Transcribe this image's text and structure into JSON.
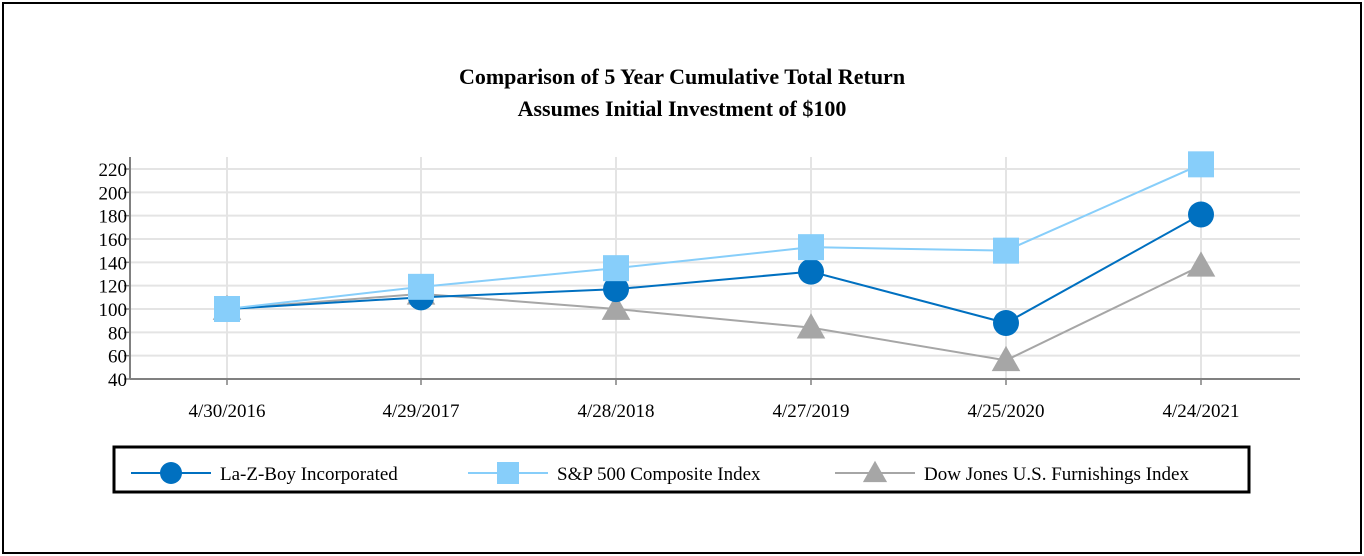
{
  "chart_data": {
    "type": "line",
    "title": "Comparison of 5 Year Cumulative Total Return",
    "subtitle": "Assumes Initial Investment of $100",
    "categories": [
      "4/30/2016",
      "4/29/2017",
      "4/28/2018",
      "4/27/2019",
      "4/25/2020",
      "4/24/2021"
    ],
    "ylim": [
      40,
      220
    ],
    "yticks": [
      40,
      60,
      80,
      100,
      120,
      140,
      160,
      180,
      200,
      220
    ],
    "grid": true,
    "legend_position": "bottom",
    "series": [
      {
        "name": "La-Z-Boy Incorporated",
        "marker": "circle",
        "color": "#0070c0",
        "values": [
          100,
          110,
          117,
          132,
          88,
          181
        ]
      },
      {
        "name": "S&P 500 Composite Index",
        "marker": "square",
        "color": "#87cefa",
        "values": [
          100,
          119,
          135,
          153,
          150,
          224
        ]
      },
      {
        "name": "Dow Jones U.S. Furnishings Index",
        "marker": "triangle",
        "color": "#a6a6a6",
        "values": [
          100,
          113,
          100,
          84,
          56,
          137
        ]
      }
    ]
  }
}
